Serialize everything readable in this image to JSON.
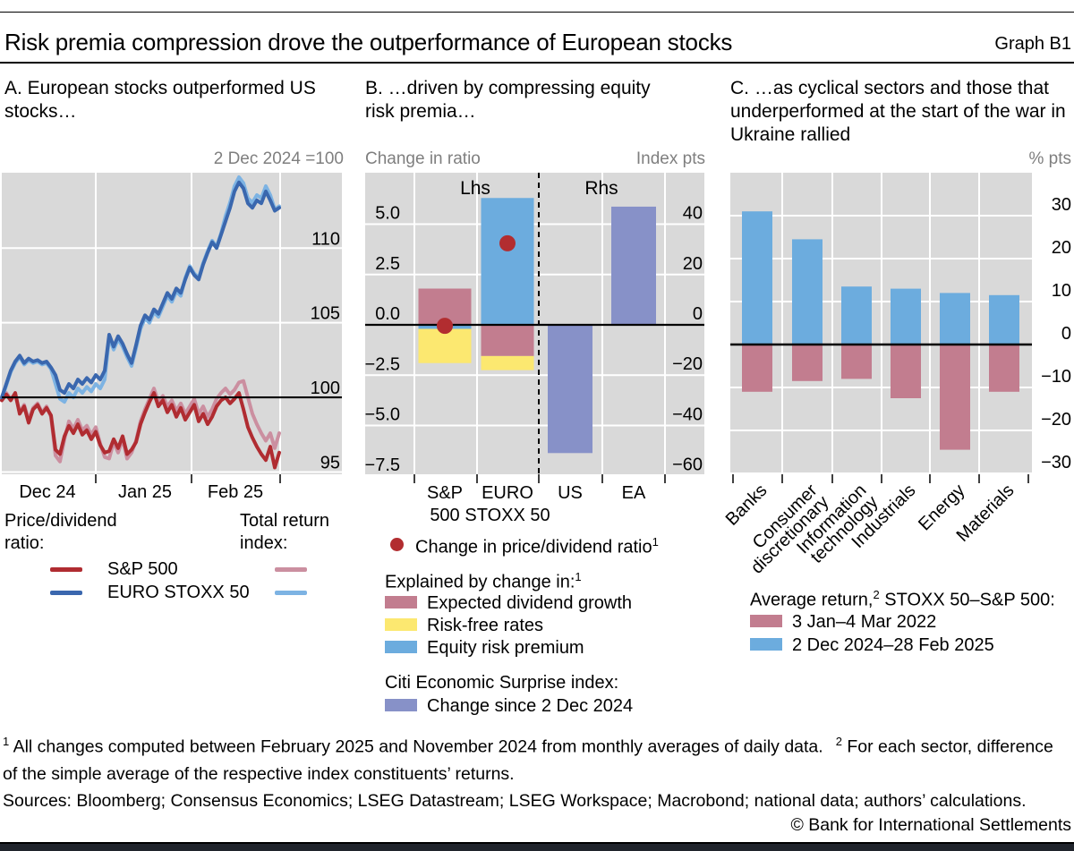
{
  "header": {
    "title": "Risk premia compression drove the outperformance of European stocks",
    "graph_label": "Graph B1"
  },
  "colors": {
    "panel_gray": "#d9d9d9",
    "grid_white": "#ffffff",
    "axis_gray": "#7f7f7f",
    "red_dark": "#b02c31",
    "pink": "#cb8fa0",
    "blue_dark": "#3a67ae",
    "blue_light": "#7db3e3",
    "mauve": "#c27d8f",
    "yellow": "#fce870",
    "blue_bar": "#6cacde",
    "purple": "#8791c8",
    "dot_red": "#b22d30"
  },
  "panel_a": {
    "title": "A. European stocks outperformed US stocks…",
    "axis_note": "2 Dec 2024 =100",
    "legend": {
      "col1_head": "Price/dividend ratio:",
      "col2_head": "Total return index:",
      "row1_label": "S&P 500",
      "row2_label": "EURO STOXX 50"
    }
  },
  "panel_b": {
    "title": "B. …driven by compressing equity risk premia…",
    "axis_note_left": "Change in ratio",
    "axis_note_right": "Index pts",
    "legend": {
      "dot_label": "Change in price/dividend ratio",
      "dot_sup": "1",
      "explained_head": "Explained by change in:",
      "explained_sup": "1",
      "item_growth": "Expected dividend growth",
      "item_riskfree": "Risk-free rates",
      "item_erp": "Equity risk premium",
      "citi_head": "Citi Economic Surprise index:",
      "citi_item": "Change since 2 Dec 2024"
    }
  },
  "panel_c": {
    "title": "C. …as cyclical sectors and those that underperformed at the start of the war in Ukraine rallied",
    "axis_note": "% pts",
    "legend": {
      "head_pre": "Average return,",
      "head_sup": "2",
      "head_post": " STOXX 50–S&P 500:",
      "item_2022": "3 Jan–4 Mar 2022",
      "item_2025": "2 Dec 2024–28 Feb 2025"
    }
  },
  "footnotes": {
    "sup1": "1",
    "text1": "  All changes computed between February 2025 and November 2024 from monthly averages of daily data.",
    "sup2": "2",
    "text2": "  For each sector, difference of the simple average of the respective index constituents’ returns."
  },
  "sources": "Sources: Bloomberg; Consensus Economics; LSEG Datastream; LSEG Workspace; Macrobond; national data; authors’ calculations.",
  "copyright": "© Bank for International Settlements",
  "chart_data": [
    {
      "id": "panel_a",
      "type": "line",
      "title": "A. European stocks outperformed US stocks…",
      "ylabel_note": "2 Dec 2024 =100",
      "ylim": [
        94.85,
        115.05
      ],
      "yticks": [
        {
          "v": 110,
          "label": "110"
        },
        {
          "v": 105,
          "label": "105"
        },
        {
          "v": 100,
          "label": "100"
        },
        {
          "v": 95,
          "label": "95"
        }
      ],
      "baseline": 100,
      "x_tick_labels": [
        "Dec 24",
        "Jan 25",
        "Feb 25"
      ],
      "series": [
        {
          "name": "S&P 500 total return index",
          "color_key": "pink",
          "values": [
            99.9,
            100.3,
            99.9,
            100.2,
            99.0,
            99.5,
            98.5,
            99.3,
            99.6,
            99.0,
            99.4,
            98.7,
            96.1,
            95.7,
            97.2,
            98.4,
            97.9,
            98.5,
            97.8,
            98.1,
            97.5,
            98.0,
            96.9,
            96.0,
            95.9,
            97.0,
            96.3,
            97.2,
            95.9,
            96.3,
            97.1,
            98.4,
            99.2,
            99.9,
            100.6,
            99.7,
            100.1,
            99.4,
            99.8,
            99.1,
            99.6,
            98.9,
            99.4,
            99.9,
            98.9,
            99.4,
            98.7,
            99.2,
            99.9,
            100.3,
            100.6,
            100.2,
            100.5,
            101.0,
            101.1,
            100.0,
            98.9,
            98.2,
            97.6,
            97.1,
            97.6,
            96.6,
            97.6
          ]
        },
        {
          "name": "EURO STOXX 50 total return index",
          "color_key": "blue_light",
          "values": [
            99.9,
            100.8,
            101.7,
            102.3,
            102.7,
            102.2,
            102.5,
            102.3,
            102.4,
            102.2,
            102.3,
            101.9,
            100.9,
            99.9,
            99.7,
            100.3,
            100.0,
            100.6,
            100.3,
            100.7,
            100.4,
            100.9,
            100.6,
            101.2,
            104.0,
            103.2,
            103.9,
            103.4,
            102.7,
            102.1,
            103.3,
            104.6,
            105.3,
            105.0,
            105.7,
            105.4,
            106.1,
            106.8,
            106.4,
            107.1,
            106.8,
            108.0,
            108.8,
            108.3,
            108.0,
            109.0,
            109.8,
            110.5,
            110.1,
            111.0,
            112.15,
            113.05,
            114.15,
            114.75,
            114.35,
            113.35,
            113.05,
            113.55,
            113.35,
            114.15,
            113.55,
            112.6,
            112.8
          ]
        },
        {
          "name": "S&P 500 price/dividend ratio",
          "color_key": "red_dark",
          "values": [
            99.8,
            100.2,
            99.8,
            100.3,
            98.9,
            99.4,
            98.3,
            99.2,
            99.5,
            98.9,
            99.3,
            98.8,
            96.5,
            96.2,
            97.4,
            98.1,
            97.6,
            98.2,
            97.5,
            97.8,
            97.2,
            97.7,
            96.8,
            96.3,
            96.4,
            97.2,
            96.6,
            97.4,
            96.2,
            96.5,
            97.0,
            98.2,
            99.0,
            99.7,
            100.3,
            99.4,
            99.8,
            99.0,
            99.5,
            98.7,
            99.3,
            98.5,
            99.0,
            99.5,
            98.4,
            98.9,
            98.2,
            98.7,
            99.4,
            99.8,
            100.0,
            99.6,
            99.9,
            100.3,
            99.2,
            98.0,
            97.3,
            96.7,
            96.2,
            95.8,
            96.7,
            95.3,
            96.3
          ]
        },
        {
          "name": "EURO STOXX 50 price/dividend ratio",
          "color_key": "blue_dark",
          "values": [
            100.0,
            100.9,
            101.8,
            102.4,
            102.8,
            102.3,
            102.6,
            102.4,
            102.5,
            102.3,
            102.4,
            102.0,
            101.5,
            100.5,
            100.3,
            100.9,
            100.6,
            101.2,
            100.9,
            101.3,
            101.0,
            101.5,
            101.2,
            101.8,
            104.2,
            103.4,
            104.1,
            103.6,
            102.9,
            102.3,
            103.5,
            104.8,
            105.5,
            105.2,
            105.9,
            105.6,
            106.3,
            107.0,
            106.6,
            107.3,
            107.0,
            107.9,
            108.7,
            108.2,
            107.9,
            108.9,
            109.7,
            110.4,
            110.0,
            110.9,
            111.8,
            112.7,
            113.8,
            114.4,
            114.0,
            113.0,
            112.7,
            113.2,
            113.0,
            113.8,
            113.2,
            112.5,
            112.7
          ]
        }
      ]
    },
    {
      "id": "panel_b",
      "type": "bar-stacked",
      "sections": {
        "lhs": "Lhs",
        "rhs": "Rhs"
      },
      "left_axis": {
        "label": "Change in ratio",
        "ticks": [
          {
            "v": 5.0,
            "label": "5.0"
          },
          {
            "v": 2.5,
            "label": "2.5"
          },
          {
            "v": 0.0,
            "label": "0.0"
          },
          {
            "v": -2.5,
            "label": "−2.5"
          },
          {
            "v": -5.0,
            "label": "−5.0"
          },
          {
            "v": -7.5,
            "label": "−7.5"
          }
        ]
      },
      "right_axis": {
        "label": "Index pts",
        "ticks": [
          {
            "v": 40,
            "label": "40"
          },
          {
            "v": 20,
            "label": "20"
          },
          {
            "v": 0,
            "label": "0"
          },
          {
            "v": -20,
            "label": "−20"
          },
          {
            "v": -40,
            "label": "−40"
          },
          {
            "v": -60,
            "label": "−60"
          }
        ]
      },
      "lhs_bars": [
        {
          "category_lines": [
            "S&P",
            "500"
          ],
          "segments": [
            {
              "component": "expected_dividend_growth",
              "color_key": "mauve",
              "from": 0,
              "to": 1.8
            },
            {
              "component": "equity_risk_premium",
              "color_key": "blue_bar",
              "from": 0,
              "to": -0.2
            },
            {
              "component": "risk_free_rates",
              "color_key": "yellow",
              "from": -0.2,
              "to": -1.9
            }
          ],
          "dot_value": -0.05
        },
        {
          "category_lines": [
            "EURO",
            "STOXX 50"
          ],
          "segments": [
            {
              "component": "equity_risk_premium",
              "color_key": "blue_bar",
              "from": 0,
              "to": 6.3
            },
            {
              "component": "expected_dividend_growth",
              "color_key": "mauve",
              "from": 0,
              "to": -1.55
            },
            {
              "component": "risk_free_rates",
              "color_key": "yellow",
              "from": -1.55,
              "to": -2.25
            }
          ],
          "dot_value": 4.05
        }
      ],
      "rhs_bars": [
        {
          "category_lines": [
            "US"
          ],
          "value": -51,
          "color_key": "purple"
        },
        {
          "category_lines": [
            "EA"
          ],
          "value": 47,
          "color_key": "purple"
        }
      ]
    },
    {
      "id": "panel_c",
      "type": "bar",
      "unit": "% pts",
      "yticks": [
        {
          "v": 30,
          "label": "30"
        },
        {
          "v": 20,
          "label": "20"
        },
        {
          "v": 10,
          "label": "10"
        },
        {
          "v": 0,
          "label": "0"
        },
        {
          "v": -10,
          "label": "−10"
        },
        {
          "v": -20,
          "label": "−20"
        },
        {
          "v": -30,
          "label": "−30"
        }
      ],
      "categories": [
        [
          "Banks"
        ],
        [
          "Consumer",
          "discretionary"
        ],
        [
          "Information",
          "technology"
        ],
        [
          "Industrials"
        ],
        [
          "Energy"
        ],
        [
          "Materials"
        ]
      ],
      "series": [
        {
          "name": "2 Dec 2024–28 Feb 2025",
          "color_key": "blue_bar",
          "values": [
            31,
            24.5,
            13.5,
            13,
            12,
            11.5
          ]
        },
        {
          "name": "3 Jan–4 Mar 2022",
          "color_key": "mauve",
          "values": [
            -11,
            -8.5,
            -8,
            -12.5,
            -24.5,
            -11
          ]
        }
      ]
    }
  ]
}
